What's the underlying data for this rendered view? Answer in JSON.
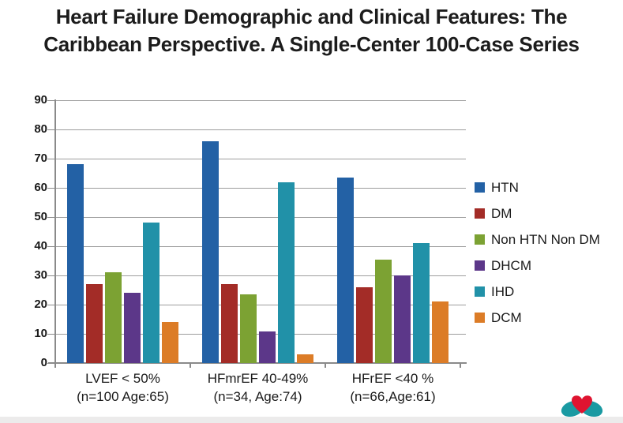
{
  "title": {
    "line1": "Heart Failure Demographic and Clinical Features: The",
    "line2": "Caribbean Perspective. A Single-Center 100-Case Series"
  },
  "chart_data": {
    "type": "bar",
    "title": "Heart Failure Demographic and Clinical Features: The Caribbean Perspective. A Single-Center 100-Case Series",
    "categories": [
      {
        "line1": "LVEF < 50%",
        "line2": "(n=100 Age:65)"
      },
      {
        "line1": "HFmrEF 40-49%",
        "line2": "(n=34, Age:74)"
      },
      {
        "line1": "HFrEF <40 %",
        "line2": "(n=66,Age:61)"
      }
    ],
    "series": [
      {
        "name": "HTN",
        "color": "#2361a5",
        "values": [
          68,
          76,
          63.5
        ]
      },
      {
        "name": "DM",
        "color": "#a32c27",
        "values": [
          27,
          27,
          26
        ]
      },
      {
        "name": "Non HTN Non DM",
        "color": "#7ca233",
        "values": [
          31,
          23.5,
          35.4
        ]
      },
      {
        "name": "DHCM",
        "color": "#5c3789",
        "values": [
          24,
          10.7,
          30
        ]
      },
      {
        "name": "IHD",
        "color": "#2191a8",
        "values": [
          48,
          61.8,
          41
        ]
      },
      {
        "name": "DCM",
        "color": "#dc7c27",
        "values": [
          14,
          3,
          21
        ]
      }
    ],
    "ylim": [
      0,
      90
    ],
    "ytick_step": 10,
    "grid": true,
    "legend_position": "right",
    "xlabel": "",
    "ylabel": ""
  },
  "logo": {
    "name": "heart-logo",
    "heart_color": "#df1430",
    "wing_color": "#1a9aa2"
  },
  "footer_strip_color": "#ecebeb"
}
